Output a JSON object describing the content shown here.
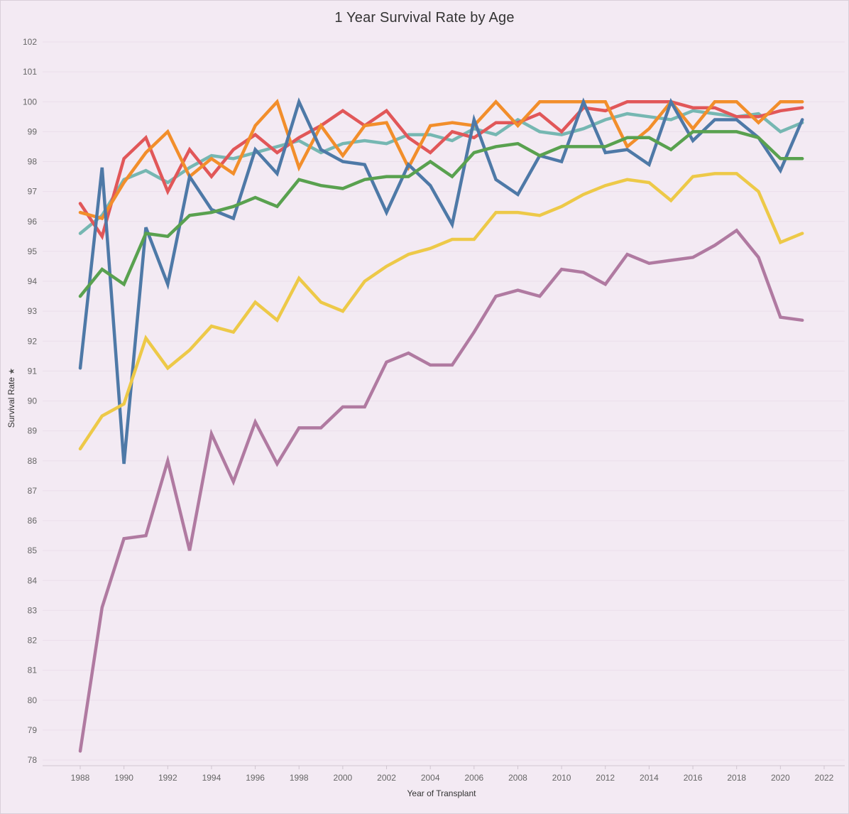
{
  "title": "1 Year Survival Rate by Age",
  "chart_data": {
    "type": "line",
    "title": "1 Year Survival Rate by Age",
    "xlabel": "Year of Transplant",
    "ylabel": "Survival Rate",
    "xlim": [
      1986,
      2022
    ],
    "ylim": [
      78,
      102
    ],
    "xticks": [
      "1988",
      "1990",
      "1992",
      "1994",
      "1996",
      "1998",
      "2000",
      "2002",
      "2004",
      "2006",
      "2008",
      "2010",
      "2012",
      "2014",
      "2016",
      "2018",
      "2020",
      "2022"
    ],
    "yticks": [
      "78",
      "79",
      "80",
      "81",
      "82",
      "83",
      "84",
      "85",
      "86",
      "87",
      "88",
      "89",
      "90",
      "91",
      "92",
      "93",
      "94",
      "95",
      "96",
      "97",
      "98",
      "99",
      "100",
      "101",
      "102"
    ],
    "grid": "horizontal",
    "x": [
      1988,
      1989,
      1990,
      1991,
      1992,
      1993,
      1994,
      1995,
      1996,
      1997,
      1998,
      1999,
      2000,
      2001,
      2002,
      2003,
      2004,
      2005,
      2006,
      2007,
      2008,
      2009,
      2010,
      2011,
      2012,
      2013,
      2014,
      2015,
      2016,
      2017,
      2018,
      2019,
      2020,
      2021
    ],
    "series": [
      {
        "color": "#76b7b2",
        "values": [
          95.6,
          96.2,
          97.4,
          97.7,
          97.3,
          97.8,
          98.2,
          98.1,
          98.3,
          98.5,
          98.7,
          98.3,
          98.6,
          98.7,
          98.6,
          98.9,
          98.9,
          98.7,
          99.1,
          98.9,
          99.4,
          99.0,
          98.9,
          99.1,
          99.4,
          99.6,
          99.5,
          99.4,
          99.7,
          99.6,
          99.5,
          99.6,
          99.0,
          99.3
        ]
      },
      {
        "color": "#e15759",
        "values": [
          96.6,
          95.5,
          98.1,
          98.8,
          97.0,
          98.4,
          97.5,
          98.4,
          98.9,
          98.3,
          98.8,
          99.2,
          99.7,
          99.2,
          99.7,
          98.8,
          98.3,
          99.0,
          98.8,
          99.3,
          99.3,
          99.6,
          99.0,
          99.8,
          99.7,
          100.0,
          100.0,
          100.0,
          99.8,
          99.8,
          99.5,
          99.5,
          99.7,
          99.8
        ]
      },
      {
        "color": "#f28e2b",
        "values": [
          96.3,
          96.1,
          97.3,
          98.3,
          99.0,
          97.5,
          98.1,
          97.6,
          99.2,
          100.0,
          97.8,
          99.2,
          98.2,
          99.2,
          99.3,
          97.8,
          99.2,
          99.3,
          99.2,
          100.0,
          99.2,
          100.0,
          100.0,
          100.0,
          100.0,
          98.5,
          99.1,
          100.0,
          99.1,
          100.0,
          100.0,
          99.3,
          100.0,
          100.0
        ]
      },
      {
        "color": "#4e79a7",
        "values": [
          91.1,
          97.8,
          87.9,
          95.8,
          93.9,
          97.5,
          96.4,
          96.1,
          98.4,
          97.6,
          100.0,
          98.4,
          98.0,
          97.9,
          96.3,
          97.9,
          97.2,
          95.9,
          99.4,
          97.4,
          96.9,
          98.2,
          98.0,
          100.0,
          98.3,
          98.4,
          97.9,
          100.0,
          98.7,
          99.4,
          99.4,
          98.8,
          97.7,
          99.4
        ]
      },
      {
        "color": "#59a14f",
        "values": [
          93.5,
          94.4,
          93.9,
          95.6,
          95.5,
          96.2,
          96.3,
          96.5,
          96.8,
          96.5,
          97.4,
          97.2,
          97.1,
          97.4,
          97.5,
          97.5,
          98.0,
          97.5,
          98.3,
          98.5,
          98.6,
          98.2,
          98.5,
          98.5,
          98.5,
          98.8,
          98.8,
          98.4,
          99.0,
          99.0,
          99.0,
          98.8,
          98.1,
          98.1
        ]
      },
      {
        "color": "#edc948",
        "values": [
          88.4,
          89.5,
          89.9,
          92.1,
          91.1,
          91.7,
          92.5,
          92.3,
          93.3,
          92.7,
          94.1,
          93.3,
          93.0,
          94.0,
          94.5,
          94.9,
          95.1,
          95.4,
          95.4,
          96.3,
          96.3,
          96.2,
          96.5,
          96.9,
          97.2,
          97.4,
          97.3,
          96.7,
          97.5,
          97.6,
          97.6,
          97.0,
          95.3,
          95.6
        ]
      },
      {
        "color": "#b07aa1",
        "values": [
          78.3,
          83.1,
          85.4,
          85.5,
          88.0,
          85.0,
          88.9,
          87.3,
          89.3,
          87.9,
          89.1,
          89.1,
          89.8,
          89.8,
          91.3,
          91.6,
          91.2,
          91.2,
          92.3,
          93.5,
          93.7,
          93.5,
          94.4,
          94.3,
          93.9,
          94.9,
          94.6,
          94.7,
          94.8,
          95.2,
          95.7,
          94.8,
          92.8,
          92.7
        ]
      }
    ]
  }
}
